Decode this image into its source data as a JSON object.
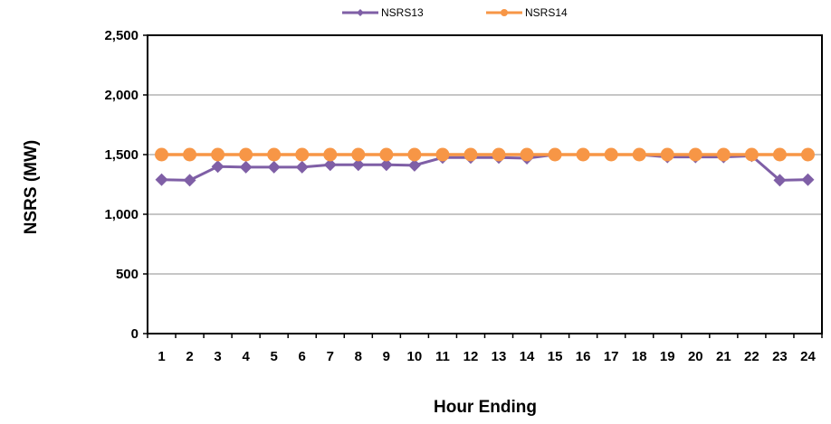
{
  "chart_data": {
    "type": "line",
    "title": "",
    "xlabel": "Hour Ending",
    "ylabel": "NSRS (MW)",
    "categories": [
      "1",
      "2",
      "3",
      "4",
      "5",
      "6",
      "7",
      "8",
      "9",
      "10",
      "11",
      "12",
      "13",
      "14",
      "15",
      "16",
      "17",
      "18",
      "19",
      "20",
      "21",
      "22",
      "23",
      "24"
    ],
    "yticks": [
      0,
      500,
      1000,
      1500,
      2000,
      2500
    ],
    "ytick_labels": [
      "0",
      "500",
      "1,000",
      "1,500",
      "2,000",
      "2,500"
    ],
    "ylim": [
      0,
      2500
    ],
    "grid": "horizontal",
    "legend_position": "top",
    "series": [
      {
        "name": "NSRS13",
        "color": "#7F5FA6",
        "marker": "diamond",
        "values": [
          1290,
          1285,
          1400,
          1395,
          1395,
          1395,
          1415,
          1415,
          1415,
          1410,
          1475,
          1475,
          1475,
          1470,
          1500,
          1500,
          1500,
          1500,
          1480,
          1480,
          1480,
          1490,
          1285,
          1290
        ]
      },
      {
        "name": "NSRS14",
        "color": "#F79646",
        "marker": "circle",
        "values": [
          1500,
          1500,
          1500,
          1500,
          1500,
          1500,
          1500,
          1500,
          1500,
          1500,
          1500,
          1500,
          1500,
          1500,
          1500,
          1500,
          1500,
          1500,
          1500,
          1500,
          1500,
          1500,
          1500,
          1500
        ]
      }
    ]
  }
}
